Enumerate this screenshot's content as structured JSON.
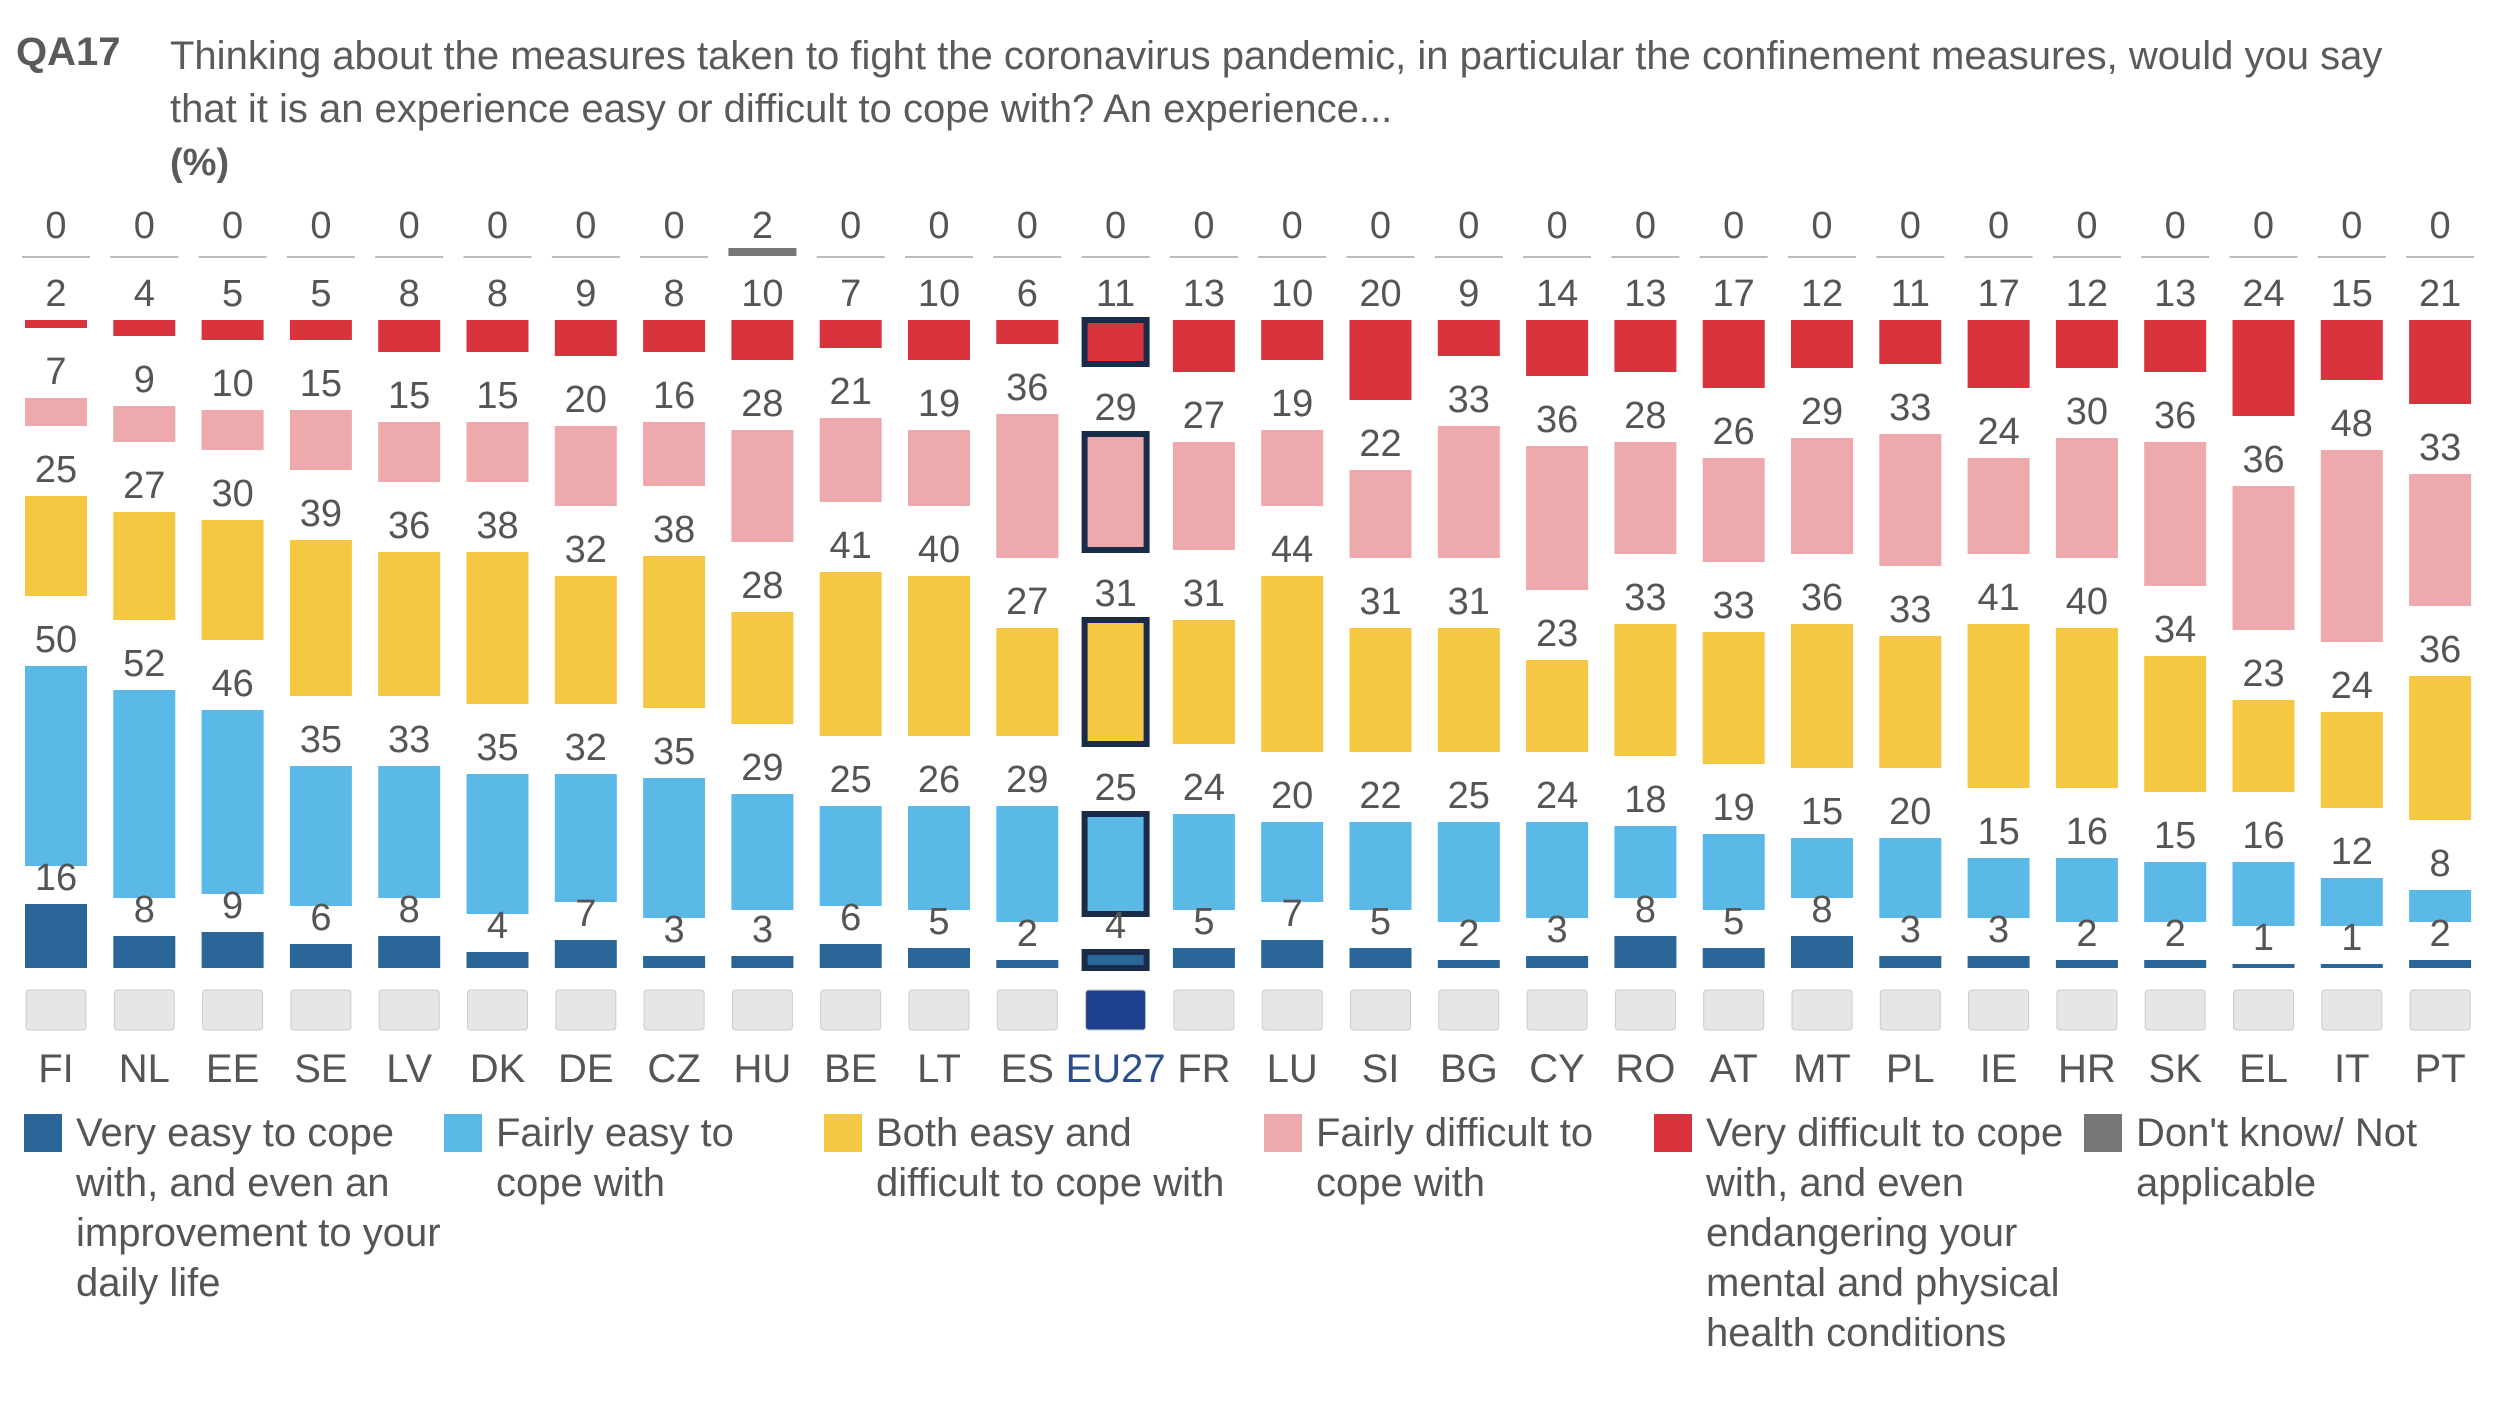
{
  "header": {
    "question_id": "QA17",
    "question_text": "Thinking about the measures taken to fight the coronavirus pandemic, in particular the confinement measures, would you say that it is an experience easy or difficult to cope with? An experience...",
    "unit": "(%)"
  },
  "colors": {
    "very_easy": "#2b6699",
    "fairly_easy": "#5bb9e8",
    "both": "#f4c842",
    "fairly_difficult": "#eea9ad",
    "very_difficult": "#d9333d",
    "dont_know": "#777777",
    "highlight_border": "#1a2b4a"
  },
  "legend": [
    {
      "key": "very_easy",
      "label": "Very easy to cope with, and even an improvement to your daily life"
    },
    {
      "key": "fairly_easy",
      "label": "Fairly easy to cope with"
    },
    {
      "key": "both",
      "label": "Both easy and difficult to cope with"
    },
    {
      "key": "fairly_difficult",
      "label": "Fairly difficult to cope with"
    },
    {
      "key": "very_difficult",
      "label": "Very difficult to cope with, and even endangering your mental and physical health conditions"
    },
    {
      "key": "dont_know",
      "label": "Don't know/ Not applicable"
    }
  ],
  "chart_data": {
    "type": "bar",
    "highlight": "EU27",
    "categories": [
      "FI",
      "NL",
      "EE",
      "SE",
      "LV",
      "DK",
      "DE",
      "CZ",
      "HU",
      "BE",
      "LT",
      "ES",
      "EU27",
      "FR",
      "LU",
      "SI",
      "BG",
      "CY",
      "RO",
      "AT",
      "MT",
      "PL",
      "IE",
      "HR",
      "SK",
      "EL",
      "IT",
      "PT"
    ],
    "series": [
      {
        "name": "Don't know/ Not applicable",
        "key": "dont_know",
        "values": [
          0,
          0,
          0,
          0,
          0,
          0,
          0,
          0,
          2,
          0,
          0,
          0,
          0,
          0,
          0,
          0,
          0,
          0,
          0,
          0,
          0,
          0,
          0,
          0,
          0,
          0,
          0,
          0
        ]
      },
      {
        "name": "Very difficult to cope with, and even endangering your mental and physical health conditions",
        "key": "very_difficult",
        "values": [
          2,
          4,
          5,
          5,
          8,
          8,
          9,
          8,
          10,
          7,
          10,
          6,
          11,
          13,
          10,
          20,
          9,
          14,
          13,
          17,
          12,
          11,
          17,
          12,
          13,
          24,
          15,
          21
        ]
      },
      {
        "name": "Fairly difficult to cope with",
        "key": "fairly_difficult",
        "values": [
          7,
          9,
          10,
          15,
          15,
          15,
          20,
          16,
          28,
          21,
          19,
          36,
          29,
          27,
          19,
          22,
          33,
          36,
          28,
          26,
          29,
          33,
          24,
          30,
          36,
          36,
          48,
          33
        ]
      },
      {
        "name": "Both easy and difficult to cope with",
        "key": "both",
        "values": [
          25,
          27,
          30,
          39,
          36,
          38,
          32,
          38,
          28,
          41,
          40,
          27,
          31,
          31,
          44,
          31,
          31,
          23,
          33,
          33,
          36,
          33,
          41,
          40,
          34,
          23,
          24,
          36
        ]
      },
      {
        "name": "Fairly easy to cope with",
        "key": "fairly_easy",
        "values": [
          50,
          52,
          46,
          35,
          33,
          35,
          32,
          35,
          29,
          25,
          26,
          29,
          25,
          24,
          20,
          22,
          25,
          24,
          18,
          19,
          15,
          20,
          15,
          16,
          15,
          16,
          12,
          8
        ]
      },
      {
        "name": "Very easy to cope with, and even an improvement to your daily life",
        "key": "very_easy",
        "values": [
          16,
          8,
          9,
          6,
          8,
          4,
          7,
          3,
          3,
          6,
          5,
          2,
          4,
          5,
          7,
          5,
          2,
          3,
          8,
          5,
          8,
          3,
          3,
          2,
          2,
          1,
          1,
          2
        ]
      }
    ]
  }
}
